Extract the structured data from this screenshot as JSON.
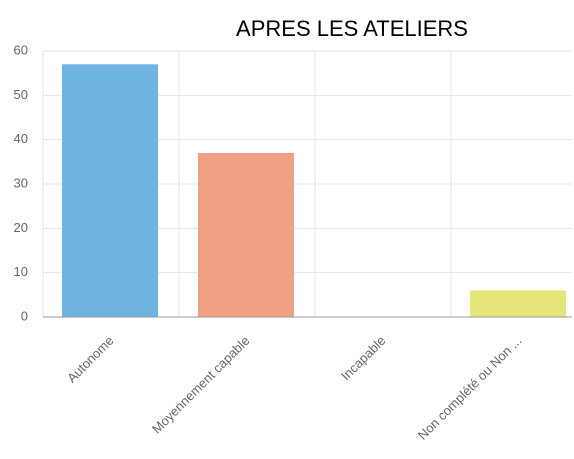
{
  "chart_data": {
    "type": "bar",
    "title": "APRES LES ATELIERS",
    "categories": [
      "Autonome",
      "Moyennement capable",
      "Incapable",
      "Non complété ou Non ..."
    ],
    "values": [
      57,
      37,
      0,
      6
    ],
    "colors": [
      "#6fb3e0",
      "#f0a085",
      "#cccccc",
      "#e5e57a"
    ],
    "ylim": [
      0,
      60
    ],
    "yticks": [
      0,
      10,
      20,
      30,
      40,
      50,
      60
    ],
    "grid": true
  }
}
